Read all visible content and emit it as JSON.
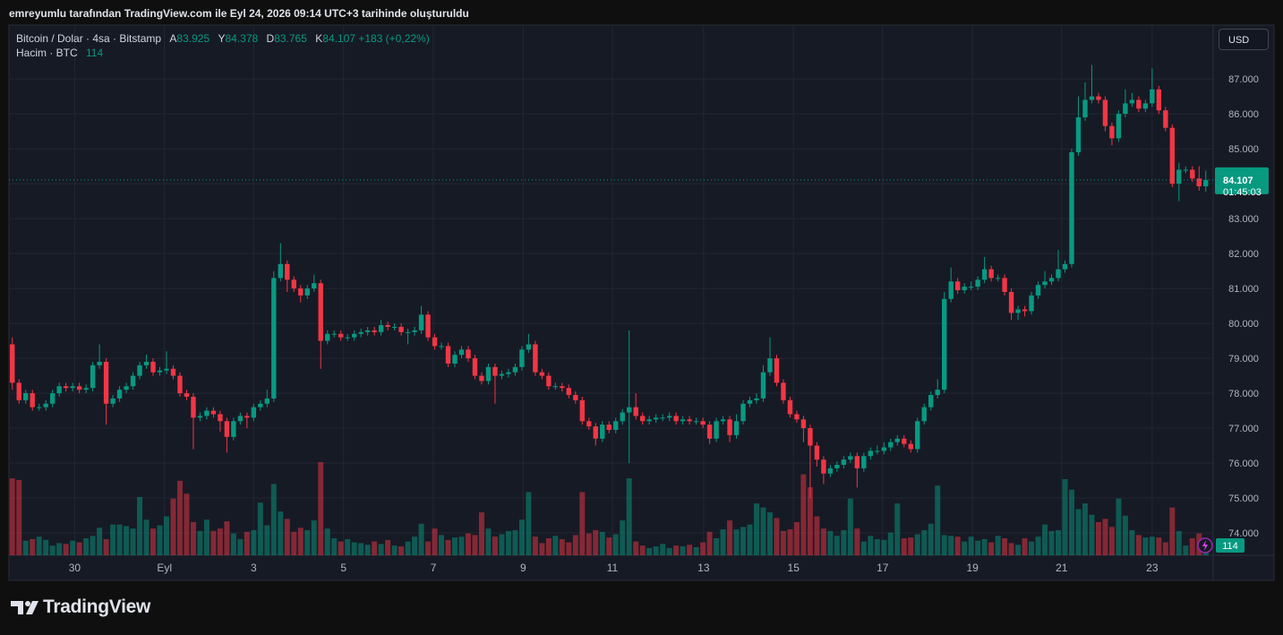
{
  "caption": "emreyumlu tarafından TradingView.com ile Eyl 24, 2026 09:14 UTC+3 tarihinde oluşturuldu",
  "brand": "TradingView",
  "chart_data": {
    "type": "candlestick",
    "title": "Bitcoin / Dolar · 4sa · Bitstamp",
    "ohlc_labels": [
      "A",
      "Y",
      "D",
      "K"
    ],
    "change_label": "+183 (+0,22%)",
    "volume_title": "Hacim · BTC",
    "currency": "USD",
    "countdown": "01:45:03",
    "up_color": "#089981",
    "down_color": "#f23645",
    "grid": true,
    "xlim": [
      -0.5,
      179.1
    ],
    "xticks": [
      {
        "value": 9.3,
        "label": "30"
      },
      {
        "value": 22.7,
        "label": "Eyl"
      },
      {
        "value": 36,
        "label": "3"
      },
      {
        "value": 49.4,
        "label": "5"
      },
      {
        "value": 62.8,
        "label": "7"
      },
      {
        "value": 76.2,
        "label": "9"
      },
      {
        "value": 89.5,
        "label": "11"
      },
      {
        "value": 103.1,
        "label": "13"
      },
      {
        "value": 116.5,
        "label": "15"
      },
      {
        "value": 129.8,
        "label": "17"
      },
      {
        "value": 143.2,
        "label": "19"
      },
      {
        "value": 156.5,
        "label": "21"
      },
      {
        "value": 170,
        "label": "23"
      }
    ],
    "ylim": [
      73.36,
      88.49
    ],
    "yticks": [
      {
        "value": 74,
        "label": "74.000"
      },
      {
        "value": 75,
        "label": "75.000"
      },
      {
        "value": 76,
        "label": "76.000"
      },
      {
        "value": 77,
        "label": "77.000"
      },
      {
        "value": 78,
        "label": "78.000"
      },
      {
        "value": 79,
        "label": "79.000"
      },
      {
        "value": 80,
        "label": "80.000"
      },
      {
        "value": 81,
        "label": "81.000"
      },
      {
        "value": 82,
        "label": "82.000"
      },
      {
        "value": 83,
        "label": "83.000"
      },
      {
        "value": 84,
        "label": "84.000"
      },
      {
        "value": 85,
        "label": "85.000"
      },
      {
        "value": 86,
        "label": "86.000"
      },
      {
        "value": 87,
        "label": "87.000"
      }
    ],
    "open": [
      79.4,
      78.3,
      77.8,
      78.0,
      77.6,
      77.6,
      77.7,
      78.0,
      78.2,
      78.15,
      78.2,
      78.1,
      78.15,
      78.8,
      78.9,
      77.7,
      77.85,
      78.1,
      78.2,
      78.5,
      78.8,
      78.9,
      78.6,
      78.65,
      78.7,
      78.5,
      78.0,
      77.9,
      77.3,
      77.35,
      77.5,
      77.4,
      77.2,
      76.75,
      77.2,
      77.35,
      77.3,
      77.6,
      77.7,
      77.85,
      81.3,
      81.7,
      81.25,
      81.0,
      80.8,
      81.0,
      81.15,
      79.5,
      79.7,
      79.7,
      79.6,
      79.6,
      79.7,
      79.75,
      79.8,
      79.75,
      79.95,
      79.9,
      79.9,
      79.75,
      79.75,
      79.8,
      80.25,
      79.6,
      79.35,
      79.35,
      78.85,
      79.1,
      79.25,
      79.0,
      78.5,
      78.35,
      78.75,
      78.5,
      78.55,
      78.6,
      78.75,
      79.25,
      79.4,
      78.6,
      78.5,
      78.2,
      78.2,
      78.15,
      77.95,
      77.8,
      77.2,
      77.05,
      76.7,
      77.1,
      76.95,
      77.2,
      77.45,
      77.6,
      77.35,
      77.2,
      77.25,
      77.3,
      77.3,
      77.35,
      77.2,
      77.25,
      77.2,
      77.2,
      77.1,
      76.7,
      77.2,
      77.25,
      76.8,
      77.2,
      77.7,
      77.8,
      77.85,
      78.6,
      79.0,
      78.3,
      77.8,
      77.4,
      77.25,
      77.0,
      76.5,
      76.1,
      75.7,
      75.85,
      75.95,
      76.1,
      76.2,
      75.85,
      76.2,
      76.35,
      76.35,
      76.45,
      76.6,
      76.7,
      76.55,
      76.4,
      77.2,
      77.6,
      77.95,
      78.1,
      80.7,
      81.2,
      80.95,
      81.05,
      81.05,
      81.25,
      81.55,
      81.3,
      81.3,
      80.9,
      80.3,
      80.4,
      80.35,
      80.8,
      81.1,
      81.2,
      81.3,
      81.55,
      81.7,
      84.9,
      85.9,
      86.4,
      86.5,
      86.4,
      85.65,
      85.3,
      86.0,
      86.3,
      86.4,
      86.15,
      86.3,
      86.7,
      86.1,
      85.6,
      84.0,
      84.4,
      84.4,
      84.15,
      83.925
    ],
    "high": [
      79.6,
      78.4,
      78.1,
      78.1,
      77.7,
      77.8,
      78.1,
      78.3,
      78.3,
      78.3,
      78.3,
      78.25,
      78.9,
      79.4,
      79.0,
      77.95,
      78.2,
      78.3,
      78.6,
      78.9,
      79.1,
      79.0,
      78.75,
      79.2,
      78.8,
      78.6,
      78.1,
      78.0,
      77.45,
      77.6,
      77.6,
      77.5,
      77.3,
      77.3,
      77.45,
      77.45,
      77.7,
      77.8,
      78.1,
      81.5,
      82.3,
      81.8,
      81.35,
      81.1,
      81.1,
      81.4,
      81.25,
      79.8,
      79.8,
      79.8,
      79.7,
      79.8,
      79.85,
      79.9,
      79.9,
      80.1,
      80.05,
      80.0,
      80.0,
      79.85,
      79.9,
      80.5,
      80.35,
      79.7,
      79.45,
      79.45,
      79.2,
      79.35,
      79.35,
      79.1,
      78.6,
      78.85,
      78.85,
      78.65,
      78.7,
      78.85,
      79.35,
      79.7,
      79.5,
      78.7,
      78.6,
      78.3,
      78.3,
      78.25,
      78.05,
      77.9,
      77.3,
      77.15,
      77.2,
      77.2,
      77.3,
      77.55,
      79.8,
      78.0,
      77.45,
      77.35,
      77.4,
      77.4,
      77.45,
      77.45,
      77.35,
      77.35,
      77.3,
      77.3,
      77.2,
      77.3,
      77.35,
      77.35,
      77.4,
      77.8,
      77.9,
      78.0,
      78.8,
      79.6,
      79.1,
      78.4,
      77.9,
      77.5,
      77.35,
      77.1,
      76.6,
      76.2,
      75.95,
      76.05,
      76.2,
      76.3,
      76.3,
      76.3,
      76.45,
      76.5,
      76.6,
      76.7,
      76.8,
      76.8,
      76.65,
      77.3,
      77.7,
      78.05,
      78.4,
      80.9,
      81.6,
      81.3,
      81.15,
      81.2,
      81.35,
      81.9,
      81.65,
      81.4,
      81.4,
      81.0,
      80.5,
      80.5,
      80.9,
      81.2,
      81.5,
      81.4,
      82.1,
      81.8,
      85.0,
      86.5,
      86.9,
      87.4,
      86.6,
      86.5,
      85.75,
      86.1,
      86.7,
      86.6,
      86.5,
      86.4,
      87.3,
      86.8,
      86.2,
      85.7,
      84.6,
      84.5,
      84.5,
      84.5,
      84.378
    ],
    "low": [
      78.1,
      77.7,
      77.7,
      77.5,
      77.5,
      77.5,
      77.6,
      77.9,
      78.05,
      78.05,
      78.0,
      78.0,
      78.05,
      78.7,
      77.1,
      77.6,
      77.75,
      78.0,
      78.1,
      78.4,
      78.7,
      78.5,
      78.5,
      78.55,
      78.4,
      77.9,
      77.8,
      76.4,
      77.2,
      77.25,
      77.3,
      76.9,
      76.3,
      76.65,
      77.1,
      77.0,
      77.2,
      77.5,
      77.6,
      77.75,
      81.2,
      80.9,
      80.9,
      80.6,
      80.7,
      80.9,
      78.7,
      79.4,
      79.6,
      79.5,
      79.5,
      79.5,
      79.6,
      79.65,
      79.65,
      79.65,
      79.8,
      79.8,
      79.65,
      79.4,
      79.65,
      79.7,
      79.5,
      79.25,
      79.25,
      78.75,
      78.75,
      79.0,
      78.9,
      78.4,
      78.25,
      78.25,
      77.7,
      78.4,
      78.45,
      78.5,
      78.65,
      79.15,
      78.5,
      78.4,
      78.1,
      78.1,
      78.05,
      77.85,
      77.7,
      77.1,
      76.95,
      76.5,
      76.6,
      76.85,
      76.85,
      77.1,
      76.0,
      77.25,
      77.1,
      77.1,
      77.15,
      77.2,
      77.2,
      77.1,
      77.1,
      77.1,
      77.1,
      77.0,
      76.55,
      76.6,
      77.1,
      76.6,
      76.7,
      77.1,
      77.6,
      77.7,
      77.75,
      78.5,
      78.2,
      77.7,
      77.3,
      77.15,
      76.6,
      75.0,
      75.9,
      75.4,
      75.6,
      75.75,
      75.85,
      76.0,
      75.3,
      75.75,
      76.1,
      76.25,
      76.25,
      76.35,
      76.5,
      76.45,
      76.3,
      76.3,
      77.1,
      77.5,
      77.85,
      78.0,
      80.6,
      80.85,
      80.85,
      80.95,
      80.95,
      81.15,
      81.2,
      81.2,
      80.8,
      80.1,
      80.1,
      80.2,
      80.25,
      80.7,
      81.0,
      81.1,
      81.2,
      81.45,
      81.6,
      84.8,
      85.8,
      86.3,
      86.3,
      85.5,
      85.1,
      85.2,
      85.9,
      86.2,
      86.05,
      86.05,
      86.2,
      86.0,
      85.5,
      83.9,
      83.5,
      84.3,
      84.05,
      83.8,
      83.765
    ],
    "close": [
      78.3,
      77.8,
      78.0,
      77.6,
      77.6,
      77.7,
      78.0,
      78.2,
      78.15,
      78.2,
      78.1,
      78.15,
      78.8,
      78.9,
      77.7,
      77.85,
      78.1,
      78.2,
      78.5,
      78.8,
      78.9,
      78.6,
      78.65,
      78.7,
      78.5,
      78.0,
      77.9,
      77.3,
      77.35,
      77.5,
      77.4,
      77.2,
      76.75,
      77.2,
      77.35,
      77.3,
      77.6,
      77.7,
      77.85,
      81.3,
      81.7,
      81.25,
      81.0,
      80.8,
      81.0,
      81.15,
      79.5,
      79.7,
      79.7,
      79.6,
      79.6,
      79.7,
      79.75,
      79.8,
      79.75,
      79.95,
      79.9,
      79.9,
      79.75,
      79.75,
      79.8,
      80.25,
      79.6,
      79.35,
      79.35,
      78.85,
      79.1,
      79.25,
      79.0,
      78.5,
      78.35,
      78.75,
      78.5,
      78.55,
      78.6,
      78.75,
      79.25,
      79.4,
      78.6,
      78.5,
      78.2,
      78.2,
      78.15,
      77.95,
      77.8,
      77.2,
      77.05,
      76.7,
      77.1,
      76.95,
      77.2,
      77.45,
      77.6,
      77.35,
      77.2,
      77.25,
      77.3,
      77.3,
      77.35,
      77.2,
      77.25,
      77.2,
      77.2,
      77.1,
      76.7,
      77.2,
      77.25,
      76.8,
      77.2,
      77.7,
      77.8,
      77.85,
      78.6,
      79.0,
      78.3,
      77.8,
      77.4,
      77.25,
      77.0,
      76.5,
      76.1,
      75.7,
      75.85,
      75.95,
      76.1,
      76.2,
      75.85,
      76.2,
      76.35,
      76.35,
      76.45,
      76.6,
      76.7,
      76.55,
      76.4,
      77.2,
      77.6,
      77.95,
      78.1,
      80.7,
      81.2,
      80.95,
      81.05,
      81.05,
      81.25,
      81.55,
      81.3,
      81.3,
      80.9,
      80.3,
      80.4,
      80.35,
      80.8,
      81.1,
      81.2,
      81.3,
      81.55,
      81.7,
      84.9,
      85.9,
      86.4,
      86.5,
      86.4,
      85.65,
      85.3,
      86.0,
      86.3,
      86.4,
      86.15,
      86.3,
      86.7,
      86.1,
      85.6,
      84.0,
      84.4,
      84.4,
      84.15,
      83.925,
      84.107
    ],
    "volume": [
      950,
      930,
      180,
      200,
      230,
      190,
      120,
      150,
      140,
      180,
      160,
      210,
      240,
      340,
      200,
      380,
      380,
      360,
      330,
      720,
      440,
      330,
      370,
      480,
      700,
      920,
      760,
      410,
      300,
      440,
      300,
      330,
      420,
      270,
      200,
      290,
      310,
      650,
      370,
      880,
      540,
      450,
      290,
      340,
      310,
      430,
      1150,
      330,
      210,
      170,
      200,
      160,
      150,
      130,
      170,
      140,
      190,
      120,
      110,
      170,
      230,
      390,
      170,
      330,
      250,
      190,
      220,
      230,
      270,
      250,
      530,
      330,
      230,
      260,
      300,
      310,
      440,
      780,
      230,
      150,
      210,
      240,
      200,
      160,
      250,
      780,
      270,
      310,
      290,
      220,
      260,
      430,
      950,
      170,
      120,
      90,
      110,
      140,
      90,
      120,
      110,
      130,
      100,
      160,
      290,
      210,
      320,
      430,
      320,
      350,
      380,
      640,
      590,
      530,
      460,
      300,
      320,
      410,
      1000,
      840,
      480,
      330,
      300,
      240,
      310,
      700,
      330,
      170,
      240,
      200,
      190,
      280,
      640,
      210,
      220,
      260,
      310,
      390,
      860,
      250,
      240,
      230,
      170,
      230,
      180,
      200,
      160,
      240,
      210,
      150,
      130,
      210,
      170,
      230,
      380,
      300,
      310,
      940,
      810,
      570,
      640,
      500,
      410,
      450,
      350,
      700,
      490,
      310,
      250,
      220,
      230,
      220,
      160,
      590,
      300,
      120,
      210,
      270,
      114
    ]
  }
}
